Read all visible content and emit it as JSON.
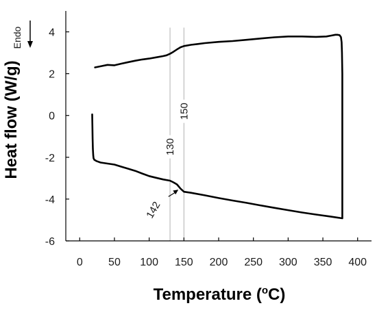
{
  "chart_data": {
    "type": "line",
    "title": "",
    "xlabel": {
      "main": "Temperature (",
      "sup": "o",
      "unit": "C)"
    },
    "ylabel": "Heat flow (W/g)",
    "xlim": [
      -20,
      420
    ],
    "ylim": [
      -6,
      5
    ],
    "xticks": [
      0,
      50,
      100,
      150,
      200,
      250,
      300,
      350,
      400
    ],
    "yticks": [
      -6,
      -4,
      -2,
      0,
      2,
      4
    ],
    "grid": false,
    "endo_label": "Endo",
    "colors": {
      "line": "#000000",
      "reference": "#b0b0b0",
      "axis": "#000000"
    },
    "series": [
      {
        "values_x": [
          22,
          30,
          40,
          50,
          60,
          70,
          80,
          90,
          100,
          110,
          120,
          125,
          130,
          135,
          140,
          145,
          150,
          160,
          170,
          180,
          200,
          220,
          240,
          260,
          280,
          300,
          320,
          340,
          355,
          362,
          368,
          371,
          374,
          376,
          377,
          377.5,
          378,
          378,
          378,
          378,
          378,
          378,
          378,
          378
        ],
        "values_y": [
          2.3,
          2.35,
          2.42,
          2.4,
          2.48,
          2.55,
          2.62,
          2.68,
          2.72,
          2.78,
          2.84,
          2.88,
          2.95,
          3.05,
          3.16,
          3.26,
          3.32,
          3.38,
          3.42,
          3.46,
          3.52,
          3.56,
          3.62,
          3.68,
          3.74,
          3.78,
          3.78,
          3.76,
          3.78,
          3.82,
          3.86,
          3.86,
          3.84,
          3.75,
          3.5,
          3.0,
          2.0,
          1.0,
          0.0,
          -1.0,
          -2.0,
          -3.0,
          -4.0,
          -4.9
        ]
      },
      {
        "values_x": [
          18,
          18.3,
          18.6,
          19,
          19.5,
          20,
          21,
          24,
          30,
          40,
          50,
          60,
          70,
          80,
          90,
          100,
          110,
          120,
          130,
          135,
          140,
          145,
          150,
          160,
          180,
          200,
          220,
          240,
          260,
          280,
          300,
          320,
          340,
          360,
          370,
          378
        ],
        "values_y": [
          0.05,
          -0.5,
          -1.1,
          -1.6,
          -1.9,
          -2.05,
          -2.12,
          -2.18,
          -2.25,
          -2.3,
          -2.35,
          -2.45,
          -2.55,
          -2.65,
          -2.78,
          -2.9,
          -2.98,
          -3.06,
          -3.12,
          -3.2,
          -3.3,
          -3.5,
          -3.65,
          -3.7,
          -3.82,
          -3.95,
          -4.07,
          -4.18,
          -4.3,
          -4.42,
          -4.53,
          -4.64,
          -4.74,
          -4.83,
          -4.88,
          -4.92
        ]
      }
    ],
    "reference_lines": [
      {
        "x": 130,
        "label": "130",
        "label_y": -1.5
      },
      {
        "x": 150,
        "label": "150",
        "label_y": 0.2
      }
    ],
    "annotations": [
      {
        "text": "142",
        "x": 142,
        "y": -3.55,
        "text_x": 110,
        "text_y": -4.6
      }
    ]
  }
}
